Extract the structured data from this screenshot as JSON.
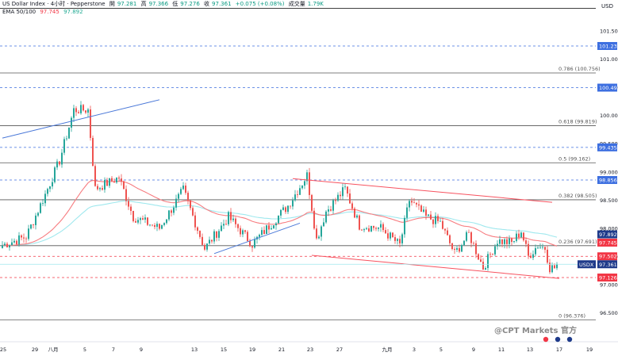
{
  "header": {
    "symbol_line": "US Dollar Index · 4小时 · Pepperstone",
    "o_label": "開",
    "o_value": "97.281",
    "h_label": "高",
    "h_value": "97.366",
    "l_label": "低",
    "l_value": "97.276",
    "c_label": "收",
    "c_value": "97.361",
    "change": "+0.075 (+0.08%)",
    "vol_label": "成交量",
    "vol_value": "1.79K",
    "ema_label": "EMA 50/100",
    "ema50_value": "97.745",
    "ema100_value": "97.892"
  },
  "currency_label": "USD",
  "watermark": "@CPT Markets 官方",
  "colors": {
    "up": "#26a69a",
    "down": "#ef5350",
    "ema50": "#f77c80",
    "ema100": "#9fe8ee",
    "trend": "#4a78d8",
    "dashed": "#3d6fe0",
    "hline": "#000000",
    "channel": "#f7525f",
    "price_badge": "#1e3a8a",
    "red_badge": "#f23645",
    "grid_text": "#131722"
  },
  "chart_data": {
    "type": "candlestick",
    "title": "US Dollar Index · 4小时 · Pepperstone",
    "ylabel": "USD",
    "ylim": [
      96.0,
      102.05
    ],
    "y_ticks": [
      "96.500",
      "97.000",
      "97.500",
      "98.000",
      "98.500",
      "99.000",
      "99.500",
      "100.000",
      "100.500",
      "101.000",
      "101.500"
    ],
    "x_ticks": [
      "25",
      "29",
      "八月",
      "5",
      "7",
      "9",
      "13",
      "15",
      "19",
      "21",
      "23",
      "27",
      "九月",
      "3",
      "5",
      "9",
      "11",
      "13",
      "17",
      "19"
    ],
    "fib_levels": [
      {
        "label": "0.786 (100.756)",
        "price": 100.756
      },
      {
        "label": "0.618 (99.819)",
        "price": 99.819
      },
      {
        "label": "0.5 (99.162)",
        "price": 99.162
      },
      {
        "label": "0.382 (98.505)",
        "price": 98.505
      },
      {
        "label": "0.236 (97.691)",
        "price": 97.691
      },
      {
        "label": "0 (96.376)",
        "price": 96.376
      }
    ],
    "dashed_levels": [
      {
        "label": "101.234",
        "price": 101.234,
        "color": "#3d6fe0"
      },
      {
        "label": "100.495",
        "price": 100.495,
        "color": "#3d6fe0"
      },
      {
        "label": "99.435",
        "price": 99.435,
        "color": "#3d6fe0"
      },
      {
        "label": "98.856",
        "price": 98.856,
        "color": "#3d6fe0"
      },
      {
        "label": "97.502",
        "price": 97.502,
        "color": "#f23645"
      },
      {
        "label": "97.126",
        "price": 97.126,
        "color": "#f23645"
      }
    ],
    "extra_hline": 101.9,
    "price_badges": [
      {
        "label": "97.892",
        "price": 97.892,
        "color": "#1e3a8a"
      },
      {
        "label": "97.745",
        "price": 97.745,
        "color": "#f23645"
      },
      {
        "label": "97.361",
        "price": 97.361,
        "color": "#1e3a8a",
        "tag": "USDX"
      }
    ],
    "current_price": 97.361,
    "trendlines": [
      {
        "from": [
          0,
          99.6
        ],
        "to": [
          66,
          100.28
        ],
        "color": "#4a78d8"
      },
      {
        "from": [
          89,
          97.55
        ],
        "to": [
          125,
          98.09
        ],
        "color": "#4a78d8"
      },
      {
        "from": [
          122,
          98.88
        ],
        "to": [
          231,
          98.46
        ],
        "color": "#f7525f"
      },
      {
        "from": [
          130,
          97.52
        ],
        "to": [
          234,
          97.11
        ],
        "color": "#f7525f"
      }
    ],
    "pivots": [
      [
        0,
        97.7
      ],
      [
        10,
        97.85
      ],
      [
        18,
        98.6
      ],
      [
        24,
        99.2
      ],
      [
        30,
        100.1
      ],
      [
        36,
        100.1
      ],
      [
        39,
        98.7
      ],
      [
        44,
        98.8
      ],
      [
        49,
        98.9
      ],
      [
        55,
        98.2
      ],
      [
        66,
        98.0
      ],
      [
        76,
        98.68
      ],
      [
        85,
        97.64
      ],
      [
        95,
        98.2
      ],
      [
        105,
        97.72
      ],
      [
        120,
        98.4
      ],
      [
        128,
        98.94
      ],
      [
        132,
        97.8
      ],
      [
        136,
        98.3
      ],
      [
        144,
        98.7
      ],
      [
        150,
        98.05
      ],
      [
        159,
        98.0
      ],
      [
        167,
        97.7
      ],
      [
        171,
        98.5
      ],
      [
        178,
        98.2
      ],
      [
        184,
        98.1
      ],
      [
        190,
        97.55
      ],
      [
        196,
        97.9
      ],
      [
        202,
        97.3
      ],
      [
        208,
        97.78
      ],
      [
        214,
        97.74
      ],
      [
        218,
        97.95
      ],
      [
        221,
        97.5
      ],
      [
        225,
        97.7
      ],
      [
        228,
        97.65
      ],
      [
        230,
        97.3
      ]
    ]
  }
}
